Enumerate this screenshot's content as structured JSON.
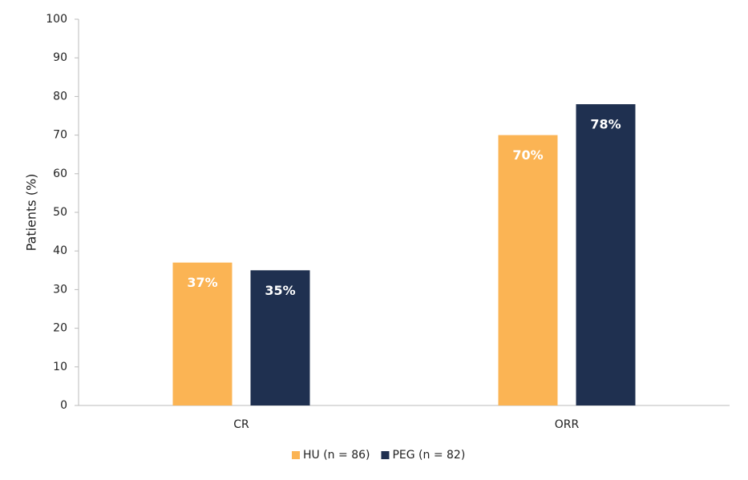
{
  "chart_data": {
    "type": "bar",
    "y_label": "Patients (%)",
    "categories": [
      "CR",
      "ORR"
    ],
    "series": [
      {
        "name": "HU (n = 86)",
        "color": "#fbb454",
        "values": [
          37,
          70
        ],
        "value_labels": [
          "37%",
          "70%"
        ]
      },
      {
        "name": "PEG (n = 82)",
        "color": "#1f3050",
        "values": [
          35,
          78
        ],
        "value_labels": [
          "35%",
          "78%"
        ]
      }
    ],
    "ylim": [
      0,
      100
    ],
    "yticks": [
      0,
      10,
      20,
      30,
      40,
      50,
      60,
      70,
      80,
      90,
      100
    ],
    "grid": false,
    "legend": "bottom"
  }
}
